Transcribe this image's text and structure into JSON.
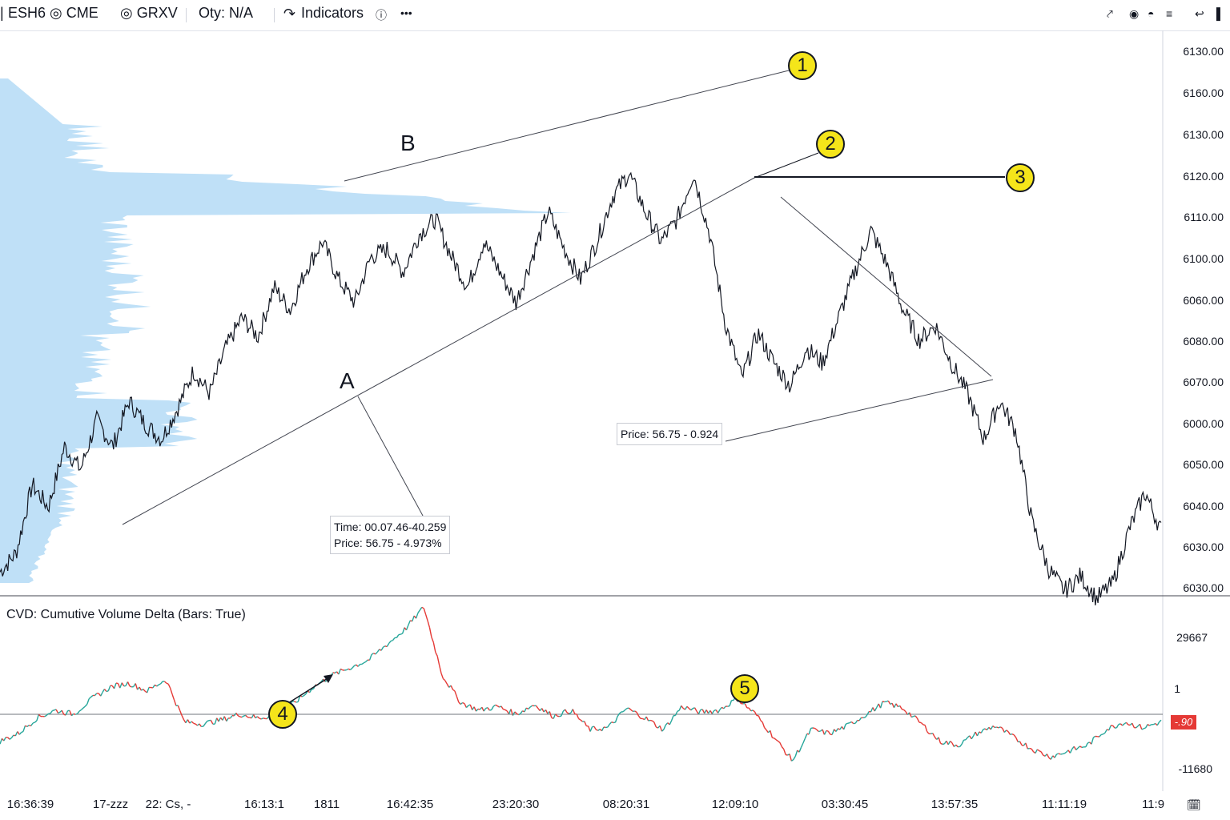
{
  "toolbar": {
    "symbol": "ESH6 ◎ CME",
    "exchange": "◎ GRXV",
    "qty": "Oty: N/A",
    "indicators_label": "Indicators",
    "more_label": "•••"
  },
  "price_axis": [
    "6130.00",
    "6160.00",
    "6130.00",
    "6120.00",
    "6110.00",
    "6100.00",
    "6060.00",
    "6080.00",
    "6070.00",
    "6000.00",
    "6050.00",
    "6040.00",
    "6030.00",
    "6030.00"
  ],
  "cvd_axis": {
    "top": "29667",
    "mid": "1",
    "bottom": "-11680",
    "last": "-.90"
  },
  "time_axis": [
    "16:36:39",
    "17-zzz",
    "22: Cs, -",
    "16:13:1",
    "1811",
    "16:42:35",
    "23:20:30",
    "08:20:31",
    "12:09:10",
    "03:30:45",
    "13:57:35",
    "11:11:19",
    "11:9"
  ],
  "cvd_title": "CVD: Cumutive Volume Delta (Bars: True)",
  "annotations": {
    "wave_a": "A",
    "wave_b": "B",
    "tooltip_a": [
      "Time: 00.07.46-40.259",
      "Price: 56.75 - 4.973%"
    ],
    "tooltip_b": "Price: 56.75 - 0.924",
    "badges": [
      "1",
      "2",
      "3",
      "4",
      "5"
    ]
  },
  "colors": {
    "up": "#26a69a",
    "down": "#e53935",
    "profile": "#bfe0f7",
    "price_line": "#131722"
  },
  "chart_data": {
    "type": "line",
    "title": "ESH6 ◎ CME",
    "price_series": {
      "name": "",
      "y": [
        6035,
        6040,
        6058,
        6052,
        6068,
        6062,
        6075,
        6068,
        6080,
        6074,
        6070,
        6078,
        6088,
        6082,
        6094,
        6102,
        6097,
        6110,
        6104,
        6115,
        6122,
        6112,
        6106,
        6118,
        6120,
        6114,
        6124,
        6128,
        6118,
        6110,
        6122,
        6114,
        6106,
        6118,
        6130,
        6120,
        6112,
        6122,
        6134,
        6140,
        6130,
        6122,
        6128,
        6140,
        6124,
        6100,
        6086,
        6098,
        6090,
        6084,
        6094,
        6090,
        6102,
        6114,
        6125,
        6116,
        6104,
        6096,
        6100,
        6090,
        6082,
        6070,
        6080,
        6072,
        6048,
        6036,
        6030,
        6034,
        6028,
        6032,
        6046,
        6056,
        6046
      ],
      "ylim": [
        6030,
        6165
      ]
    },
    "cvd_series": {
      "name": "CVD",
      "y": [
        -5000,
        -3000,
        1000,
        3000,
        2000,
        6000,
        9000,
        10000,
        8000,
        11000,
        0,
        -500,
        500,
        2000,
        1000,
        1800,
        5000,
        9000,
        12000,
        14000,
        16000,
        20000,
        24000,
        29667,
        12000,
        5000,
        3000,
        4000,
        2000,
        4500,
        1500,
        3000,
        -2000,
        -1500,
        3500,
        1000,
        -2000,
        4000,
        2500,
        3000,
        6000,
        2000,
        -4000,
        -10000,
        -2000,
        -3000,
        -1000,
        2000,
        5000,
        3500,
        -500,
        -5000,
        -6000,
        -3000,
        -1000,
        -4000,
        -7000,
        -9000,
        -7500,
        -6000,
        -2000,
        0,
        -1500,
        -0.9
      ],
      "ylim": [
        -11680,
        29667
      ]
    }
  }
}
